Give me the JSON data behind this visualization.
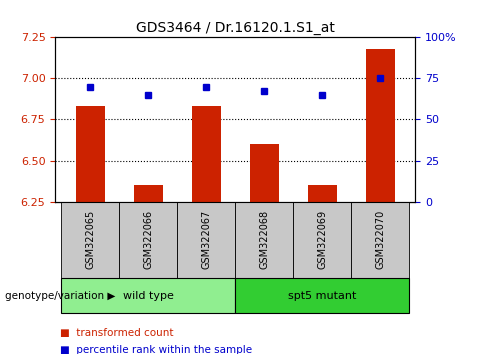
{
  "title": "GDS3464 / Dr.16120.1.S1_at",
  "samples": [
    "GSM322065",
    "GSM322066",
    "GSM322067",
    "GSM322068",
    "GSM322069",
    "GSM322070"
  ],
  "bar_values": [
    6.83,
    6.35,
    6.83,
    6.6,
    6.35,
    7.18
  ],
  "percentile_values": [
    70,
    65,
    70,
    67,
    65,
    75
  ],
  "bar_color": "#cc2200",
  "dot_color": "#0000cc",
  "ylim_left": [
    6.25,
    7.25
  ],
  "ylim_right": [
    0,
    100
  ],
  "yticks_left": [
    6.25,
    6.5,
    6.75,
    7.0,
    7.25
  ],
  "yticks_right": [
    0,
    25,
    50,
    75,
    100
  ],
  "ytick_labels_right": [
    "0",
    "25",
    "50",
    "75",
    "100%"
  ],
  "hgrid_vals": [
    6.5,
    6.75,
    7.0
  ],
  "groups": [
    {
      "label": "wild type",
      "indices": [
        0,
        1,
        2
      ],
      "color": "#90ee90"
    },
    {
      "label": "spt5 mutant",
      "indices": [
        3,
        4,
        5
      ],
      "color": "#32cd32"
    }
  ],
  "group_row_label": "genotype/variation",
  "legend_bar_label": "transformed count",
  "legend_dot_label": "percentile rank within the sample",
  "bar_width": 0.5,
  "fig_bg": "#ffffff",
  "plot_bg": "#ffffff",
  "tick_area_color": "#c8c8c8"
}
